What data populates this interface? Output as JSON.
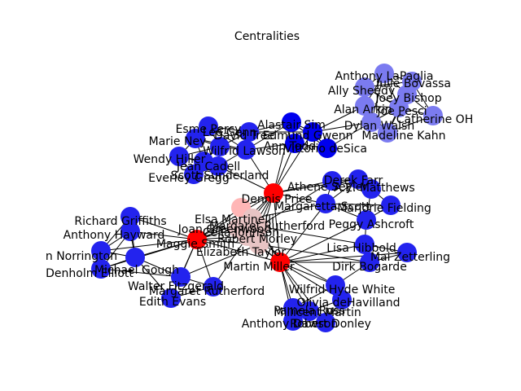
{
  "title": "Centralities",
  "colors": {
    "high": "#ff0000",
    "mid_high": "#ffb6b6",
    "mid": "#e8c4c4",
    "community_a": "#7b7bf0",
    "community_b": "#2323ee",
    "community_c": "#0000ee",
    "edge": "#000000"
  },
  "nodes": [
    {
      "id": "Anthony LaPaglia",
      "color": "community_a"
    },
    {
      "id": "Julie Bovassa",
      "color": "community_a"
    },
    {
      "id": "Ally Sheedy",
      "color": "community_a"
    },
    {
      "id": "Joey Bishop",
      "color": "community_a"
    },
    {
      "id": "Alan Arkin",
      "color": "community_a"
    },
    {
      "id": "Joe Pesci",
      "color": "community_a"
    },
    {
      "id": "Catherine OH",
      "color": "community_a"
    },
    {
      "id": "Dylan Walsh",
      "color": "community_a"
    },
    {
      "id": "Madeline Kahn",
      "color": "community_a"
    },
    {
      "id": "Esme Percy",
      "color": "community_b"
    },
    {
      "id": "Marie Ney",
      "color": "community_b"
    },
    {
      "id": "Wendy Hiller",
      "color": "community_b"
    },
    {
      "id": "Everley Gregg",
      "color": "community_b"
    },
    {
      "id": "Leo Genn",
      "color": "community_b"
    },
    {
      "id": "David Tree",
      "color": "community_b"
    },
    {
      "id": "Scott Sunderland",
      "color": "community_b"
    },
    {
      "id": "Wilfrid Lawson",
      "color": "community_b"
    },
    {
      "id": "Jean Cadell",
      "color": "community_b"
    },
    {
      "id": "Alastair Sim",
      "color": "community_c"
    },
    {
      "id": "Edmund Gwenn",
      "color": "community_c"
    },
    {
      "id": "Ann Todd",
      "color": "community_c"
    },
    {
      "id": "Vittorio deSica",
      "color": "community_c"
    },
    {
      "id": "Dennis Price",
      "color": "high"
    },
    {
      "id": "Elsa Martinelli",
      "color": "mid_high"
    },
    {
      "id": "Joan Greenwood",
      "color": "mid"
    },
    {
      "id": "Margaret Rutherford",
      "color": "mid"
    },
    {
      "id": "Robert Morley",
      "color": "mid"
    },
    {
      "id": "Celia Johnson",
      "color": "mid"
    },
    {
      "id": "Elizabeth Taylor",
      "color": "mid"
    },
    {
      "id": "Maggie Smith",
      "color": "high"
    },
    {
      "id": "Martin Miller",
      "color": "high"
    },
    {
      "id": "Richard Griffiths",
      "color": "community_b"
    },
    {
      "id": "Anthony Hayward",
      "color": "community_b"
    },
    {
      "id": "Norrington",
      "color": "community_b"
    },
    {
      "id": "Denholm Elliott",
      "color": "community_b"
    },
    {
      "id": "Michael Gough",
      "color": "community_b"
    },
    {
      "id": "Walter Fitzgerald",
      "color": "community_b"
    },
    {
      "id": "Margaret Rutherford II",
      "color": "community_b"
    },
    {
      "id": "Edith Evans",
      "color": "community_b"
    },
    {
      "id": "Athene Seyler",
      "color": "community_b"
    },
    {
      "id": "Derek Farr",
      "color": "community_b"
    },
    {
      "id": "A.E. Matthews",
      "color": "community_b"
    },
    {
      "id": "Margaretta Scott",
      "color": "community_b"
    },
    {
      "id": "Marjorie Fielding",
      "color": "community_b"
    },
    {
      "id": "Peggy Ashcroft",
      "color": "community_b"
    },
    {
      "id": "Lisa Hibbold",
      "color": "community_b"
    },
    {
      "id": "Mai Zetterling",
      "color": "community_b"
    },
    {
      "id": "Dirk Bogarde",
      "color": "community_b"
    },
    {
      "id": "Wilfrid Hyde White",
      "color": "community_b"
    },
    {
      "id": "Olivia deHavilland",
      "color": "community_b"
    },
    {
      "id": "Pamela Ross",
      "color": "community_b"
    },
    {
      "id": "Millicent Martin",
      "color": "community_b"
    },
    {
      "id": "Robert Donley",
      "color": "community_b"
    },
    {
      "id": "Anthony Dawson",
      "color": "community_b"
    }
  ],
  "labels": [
    {
      "id": "Anthony LaPaglia",
      "text": "Anthony LaPaglia"
    },
    {
      "id": "Julie Bovassa",
      "text": "Julie Bovassa"
    },
    {
      "id": "Ally Sheedy",
      "text": "Ally Sheedy"
    },
    {
      "id": "Joey Bishop",
      "text": "Joey Bishop"
    },
    {
      "id": "Alan Arkin",
      "text": "Alan Arkin"
    },
    {
      "id": "Joe Pesci",
      "text": "Joe Pesci"
    },
    {
      "id": "Catherine OH",
      "text": "Catherine OH"
    },
    {
      "id": "Dylan Walsh",
      "text": "Dylan Walsh"
    },
    {
      "id": "Madeline Kahn",
      "text": "Madeline Kahn"
    },
    {
      "id": "Esme Percy",
      "text": "Esme Percy"
    },
    {
      "id": "Marie Ney",
      "text": "Marie Ney"
    },
    {
      "id": "Wendy Hiller",
      "text": "Wendy Hiller"
    },
    {
      "id": "Everley Gregg",
      "text": "Everley Gregg"
    },
    {
      "id": "Leo Genn",
      "text": "Leo Genn"
    },
    {
      "id": "David Tree",
      "text": "David Tree"
    },
    {
      "id": "Scott Sunderland",
      "text": "Scott Sunderland"
    },
    {
      "id": "Wilfrid Lawson",
      "text": "Wilfrid Lawson"
    },
    {
      "id": "Jean Cadell",
      "text": "Jean Cadell"
    },
    {
      "id": "Alastair Sim",
      "text": "Alastair Sim"
    },
    {
      "id": "Edmund Gwenn",
      "text": "Edmund Gwenn"
    },
    {
      "id": "Ann Todd",
      "text": "Ann Todd"
    },
    {
      "id": "Vittorio deSica",
      "text": "Vittorio deSica"
    },
    {
      "id": "Dennis Price",
      "text": "Dennis Price"
    },
    {
      "id": "Elsa Martinelli",
      "text": "Elsa Martinelli"
    },
    {
      "id": "Joan Greenwood",
      "text": "Joan Greenwood"
    },
    {
      "id": "Margaret Rutherford",
      "text": "Margaret Rutherford"
    },
    {
      "id": "Robert Morley",
      "text": "Robert Morley"
    },
    {
      "id": "Celia Johnson",
      "text": "Celia Johnson"
    },
    {
      "id": "Elizabeth Taylor",
      "text": "Elizabeth Taylor"
    },
    {
      "id": "Maggie Smith",
      "text": "Maggie Smith"
    },
    {
      "id": "Martin Miller",
      "text": "Martin Miller"
    },
    {
      "id": "Richard Griffiths",
      "text": "Richard Griffiths"
    },
    {
      "id": "Anthony Hayward",
      "text": "Anthony Hayward"
    },
    {
      "id": "Norrington",
      "text": "n Norrington"
    },
    {
      "id": "Denholm Elliott",
      "text": "Denholm Elliott"
    },
    {
      "id": "Michael Gough",
      "text": "Michael Gough"
    },
    {
      "id": "Walter Fitzgerald",
      "text": "Walter Fitzgerald"
    },
    {
      "id": "Margaret Rutherford II",
      "text": "Margaret Rutherford"
    },
    {
      "id": "Edith Evans",
      "text": "Edith Evans"
    },
    {
      "id": "Athene Seyler",
      "text": "Athene Seyler"
    },
    {
      "id": "Derek Farr",
      "text": "Derek Farr"
    },
    {
      "id": "A.E. Matthews",
      "text": "A.E. Matthews"
    },
    {
      "id": "Margaretta Scott",
      "text": "Margaretta Scott"
    },
    {
      "id": "Marjorie Fielding",
      "text": "Marjorie Fielding"
    },
    {
      "id": "Peggy Ashcroft",
      "text": "Peggy Ashcroft"
    },
    {
      "id": "Lisa Hibbold",
      "text": "Lisa Hibbold"
    },
    {
      "id": "Mai Zetterling",
      "text": "Mai Zetterling"
    },
    {
      "id": "Dirk Bogarde",
      "text": "Dirk Bogarde"
    },
    {
      "id": "Wilfrid Hyde White",
      "text": "Wilfrid Hyde White"
    },
    {
      "id": "Olivia deHavilland",
      "text": "Olivia deHavilland"
    },
    {
      "id": "Pamela Ross",
      "text": "Pamela Ross"
    },
    {
      "id": "Millicent Martin",
      "text": "Millicent Martin"
    },
    {
      "id": "Robert Donley",
      "text": "Robert Donley"
    },
    {
      "id": "Anthony Dawson",
      "text": "Anthony Dawson"
    }
  ]
}
